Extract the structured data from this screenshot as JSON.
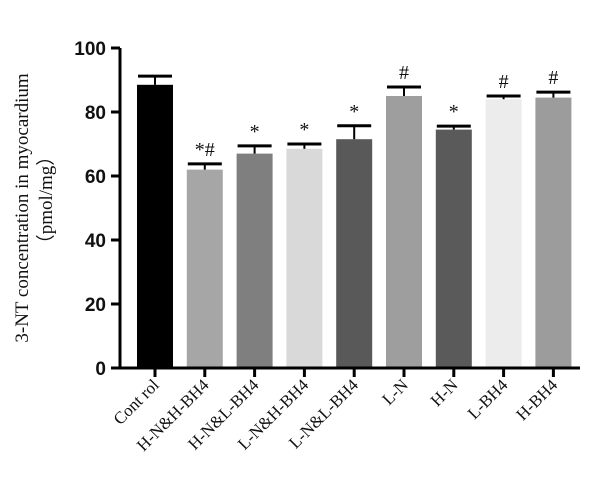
{
  "chart_data": {
    "type": "bar",
    "ylabel_line1": "3-NT concentration in myocardium",
    "ylabel_line2": "（pmol/mg）",
    "ylim": [
      0,
      100
    ],
    "yticks": [
      0,
      20,
      40,
      60,
      80,
      100
    ],
    "categories": [
      "Cont rol",
      "H-N&H-BH4",
      "H-N&L-BH4",
      "L-N&H-BH4",
      "L-N&L-BH4",
      "L-N",
      "H-N",
      "L-BH4",
      "H-BH4"
    ],
    "values": [
      88.5,
      62,
      67,
      68.5,
      71.5,
      85,
      74.5,
      84,
      84.5
    ],
    "errors": [
      2.7,
      1.8,
      2.4,
      1.5,
      4.2,
      2.8,
      1.1,
      1.0,
      1.7
    ],
    "significance": [
      "",
      "*#",
      "*",
      "*",
      "*",
      "#",
      "*",
      "#",
      "#"
    ],
    "colors": [
      "#000000",
      "#a6a6a6",
      "#7f7f7f",
      "#d9d9d9",
      "#595959",
      "#9e9e9e",
      "#5a5a5a",
      "#ececec",
      "#9c9c9c"
    ]
  }
}
